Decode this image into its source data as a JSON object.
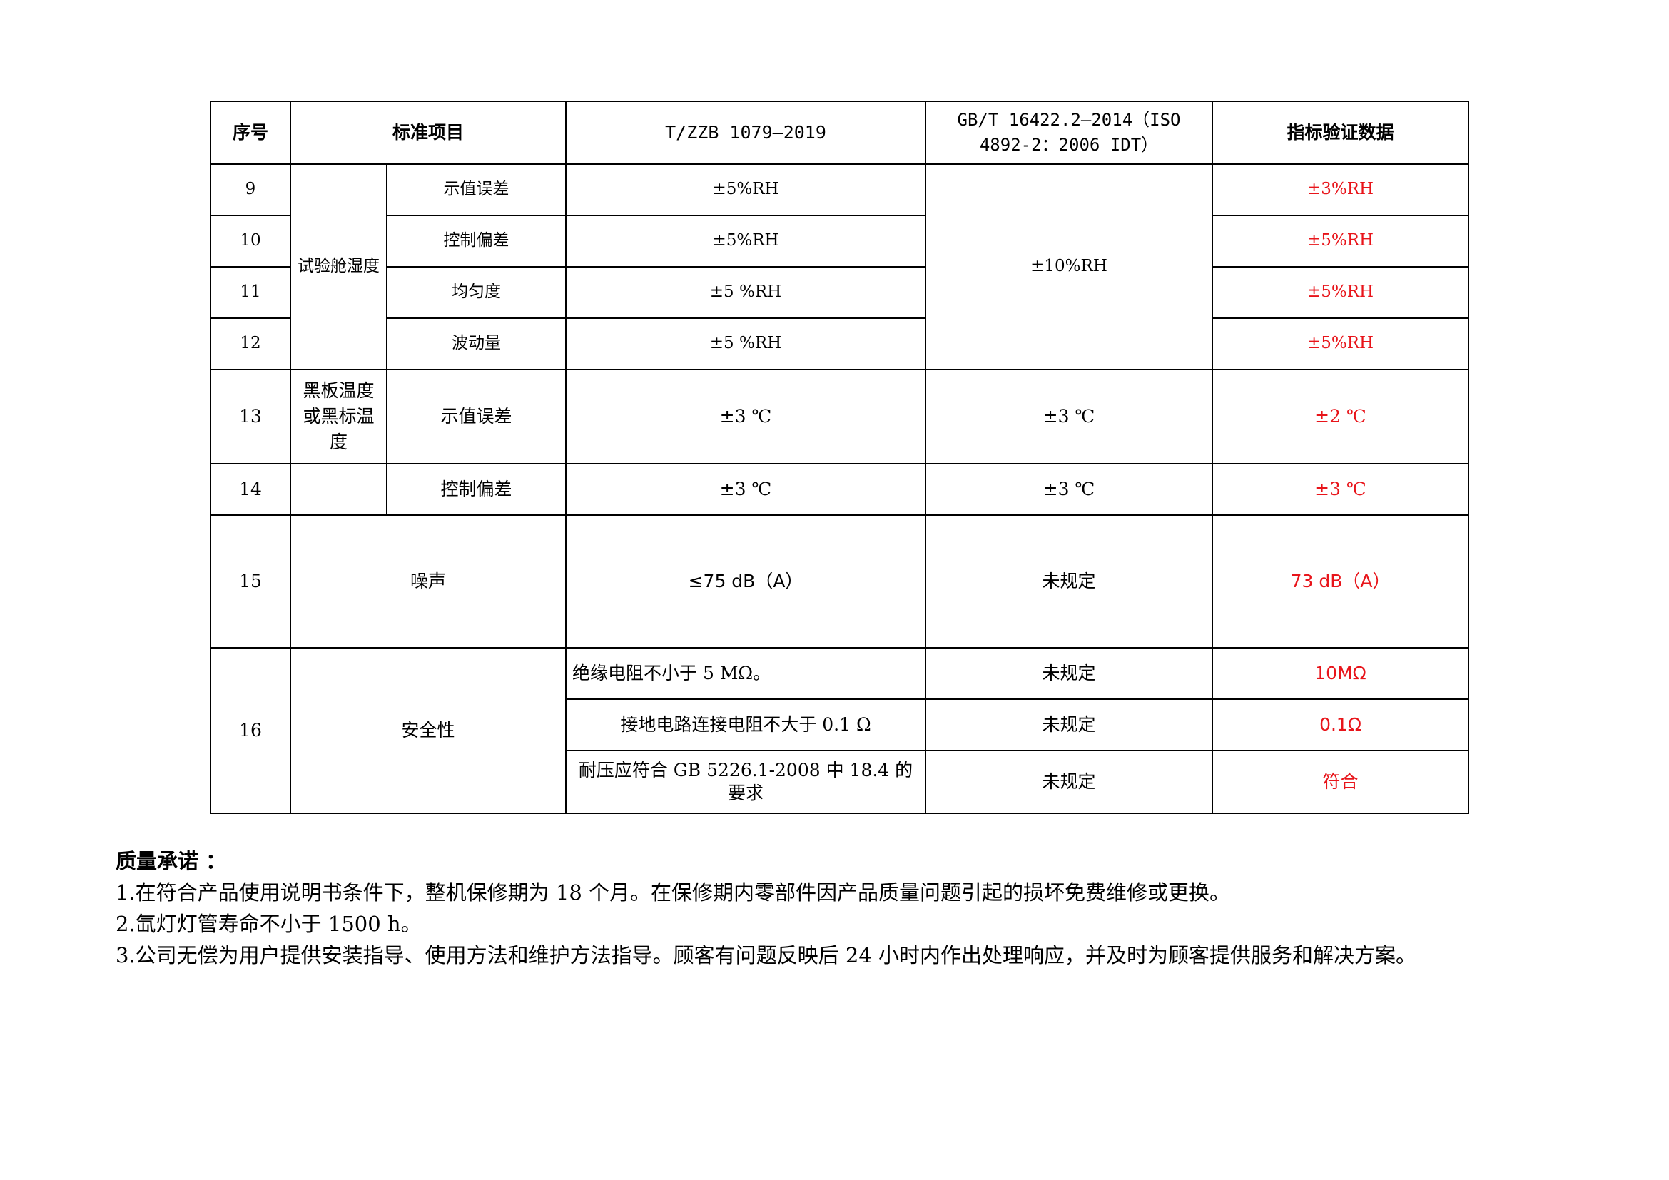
{
  "table": {
    "headers": [
      "序号",
      "标准项目",
      "T/ZZB 1079—2019",
      "GB/T 16422.2—2014（ISO 4892-2：2006 IDT）",
      "指标验证数据"
    ],
    "humidity_group": "试验舱湿度",
    "humidity_gb": "±10%RH",
    "rows": [
      {
        "no": "9",
        "item": "示值误差",
        "tzzb": "±5%RH",
        "verify": "±3%RH"
      },
      {
        "no": "10",
        "item": "控制偏差",
        "tzzb": "±5%RH",
        "verify": "±5%RH"
      },
      {
        "no": "11",
        "item": "均匀度",
        "tzzb": "±5 %RH",
        "verify": "±5%RH"
      },
      {
        "no": "12",
        "item": "波动量",
        "tzzb": "±5 %RH",
        "verify": "±5%RH"
      },
      {
        "no": "13",
        "group": "黑板温度或黑标温度",
        "item": "示值误差",
        "tzzb": "±3 ℃",
        "gb": "±3 ℃",
        "verify": "±2 ℃"
      },
      {
        "no": "14",
        "group": "",
        "item": "控制偏差",
        "tzzb": "±3 ℃",
        "gb": "±3 ℃",
        "verify": "±3 ℃"
      },
      {
        "no": "15",
        "item": "噪声",
        "tzzb": "≤75 dB（A）",
        "gb": "未规定",
        "verify": "73 dB（A）"
      }
    ],
    "safety": {
      "no": "16",
      "item": "安全性",
      "subs": [
        {
          "tzzb": "绝缘电阻不小于 5 MΩ。",
          "gb": "未规定",
          "verify": "10MΩ"
        },
        {
          "tzzb": "接地电路连接电阻不大于 0.1 Ω",
          "gb": "未规定",
          "verify": "0.1Ω"
        },
        {
          "tzzb": "耐压应符合 GB 5226.1-2008 中 18.4 的要求",
          "gb": "未规定",
          "verify": "符合"
        }
      ]
    }
  },
  "notes": {
    "title": "质量承诺 ：",
    "lines": [
      "1.在符合产品使用说明书条件下，整机保修期为 18 个月。在保修期内零部件因产品质量问题引起的损坏免费维修或更换。",
      "2.氙灯灯管寿命不小于 1500 h。",
      "3.公司无偿为用户提供安装指导、使用方法和维护方法指导。顾客有问题反映后 24 小时内作出处理响应，并及时为顾客提供服务和解决方案。"
    ]
  },
  "colors": {
    "highlight": "#e8141a"
  }
}
